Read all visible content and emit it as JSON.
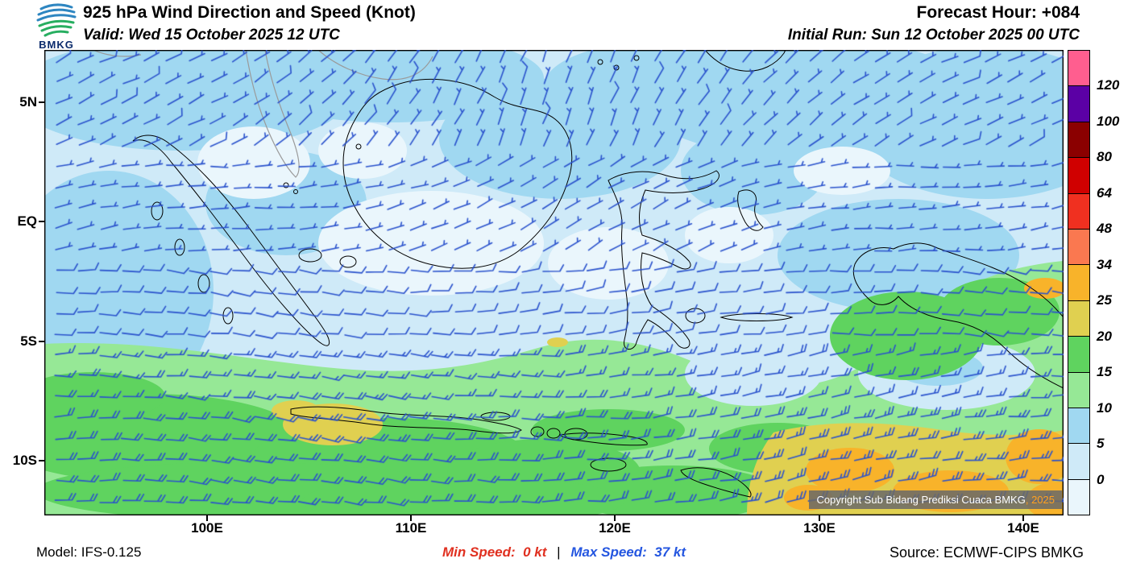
{
  "header": {
    "logo_text": "BMKG",
    "title": "925 hPa Wind Direction and Speed (Knot)",
    "forecast_hour": "Forecast Hour: +084",
    "valid": "Valid: Wed 15 October 2025 12 UTC",
    "initial_run": "Initial Run: Sun 12 October 2025 00 UTC"
  },
  "axes": {
    "lat": [
      "5N",
      "EQ",
      "5S",
      "10S"
    ],
    "lon": [
      "100E",
      "110E",
      "120E",
      "130E",
      "140E"
    ]
  },
  "colorbar": {
    "labels": [
      "120",
      "100",
      "80",
      "64",
      "48",
      "34",
      "25",
      "20",
      "15",
      "10",
      "5",
      "0"
    ],
    "colors_top_to_bottom": [
      "#ff5e8f",
      "#5b00a5",
      "#8b0000",
      "#d00000",
      "#f03020",
      "#fa7850",
      "#f8b32a",
      "#e0d050",
      "#5fd35f",
      "#96e896",
      "#a0d8f1",
      "#cfeaf8",
      "#eaf6fc"
    ]
  },
  "map_overlay": {
    "copyright": "Copyright Sub Bidang Prediksi Cuaca BMKG",
    "year": ", 2025",
    "barb_color": "#2a52cc"
  },
  "footer": {
    "model": "Model: IFS-0.125",
    "min_speed_label": "Min Speed:",
    "min_speed_value": "0 kt",
    "separator": "|",
    "max_speed_label": "Max Speed:",
    "max_speed_value": "37 kt",
    "source": "Source: ECMWF-CIPS BMKG",
    "min_color": "#e03020",
    "max_color": "#2456e0"
  },
  "chart_data": {
    "type": "heatmap",
    "title": "925 hPa Wind Direction and Speed (Knot)",
    "forecast_hour": "+084",
    "valid_time": "Wed 15 October 2025 12 UTC",
    "initial_run": "Sun 12 October 2025 00 UTC",
    "model": "IFS-0.125",
    "source": "ECMWF-CIPS BMKG",
    "min_speed_kt": 0,
    "max_speed_kt": 37,
    "speed_scale_kt": [
      0,
      5,
      10,
      15,
      20,
      25,
      34,
      48,
      64,
      80,
      100,
      120
    ],
    "lat_ticks": [
      "5N",
      "EQ",
      "5S",
      "10S"
    ],
    "lon_ticks": [
      "100E",
      "110E",
      "120E",
      "130E",
      "140E"
    ],
    "legend_position": "right",
    "region": "Indonesia",
    "description": "Filled contours of 925 hPa wind speed (knots) with wind barbs; light blues 0-10 kt over northern seas, greens 10-20 kt across southern Indonesia, yellow-orange 20-34 kt south of Java through the Arafura Sea"
  }
}
